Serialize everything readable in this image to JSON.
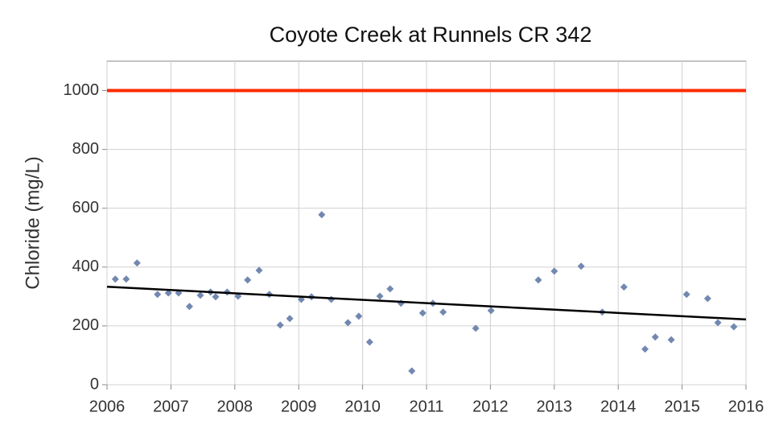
{
  "chart_data": {
    "type": "scatter",
    "title": "Coyote Creek at Runnels CR 342",
    "ylabel": "Chloride (mg/L)",
    "series": [
      {
        "color": "#7288b0",
        "x": [
          2006.13,
          2006.3,
          2006.47,
          2006.79,
          2006.96,
          2007.12,
          2007.29,
          2007.46,
          2007.62,
          2007.7,
          2007.88,
          2008.05,
          2008.2,
          2008.38,
          2008.54,
          2008.71,
          2008.86,
          2009.04,
          2009.2,
          2009.36,
          2009.51,
          2009.77,
          2009.94,
          2010.11,
          2010.27,
          2010.43,
          2010.6,
          2010.77,
          2010.94,
          2011.1,
          2011.26,
          2011.77,
          2012.01,
          2012.75,
          2013.0,
          2013.42,
          2013.75,
          2014.09,
          2014.42,
          2014.58,
          2014.83,
          2015.07,
          2015.4,
          2015.56,
          2015.81
        ],
        "values": [
          359,
          359,
          414,
          307,
          312,
          312,
          266,
          304,
          315,
          299,
          315,
          301,
          356,
          389,
          307,
          203,
          225,
          290,
          299,
          578,
          290,
          211,
          233,
          145,
          301,
          326,
          277,
          47,
          244,
          277,
          247,
          192,
          252,
          356,
          386,
          403,
          247,
          332,
          121,
          162,
          153,
          307,
          293,
          211,
          197
        ]
      }
    ],
    "trend_line": {
      "color": "#000000",
      "x": [
        2006,
        2016
      ],
      "values": [
        333,
        222
      ]
    },
    "reference_line": {
      "color": "#ff2a00",
      "value": 1000
    },
    "xlim": [
      2006,
      2016
    ],
    "xticks": [
      2006,
      2007,
      2008,
      2009,
      2010,
      2011,
      2012,
      2013,
      2014,
      2015,
      2016
    ],
    "ylim": [
      0,
      1100
    ],
    "yticks": [
      0,
      200,
      400,
      600,
      800,
      1000
    ],
    "grid": true
  }
}
